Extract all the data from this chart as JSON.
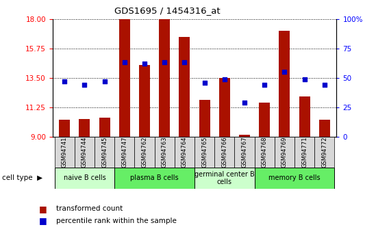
{
  "title": "GDS1695 / 1454316_at",
  "samples": [
    "GSM94741",
    "GSM94744",
    "GSM94745",
    "GSM94747",
    "GSM94762",
    "GSM94763",
    "GSM94764",
    "GSM94765",
    "GSM94766",
    "GSM94767",
    "GSM94768",
    "GSM94769",
    "GSM94771",
    "GSM94772"
  ],
  "bar_values": [
    10.3,
    10.35,
    10.45,
    18.0,
    14.5,
    18.0,
    16.6,
    11.8,
    13.5,
    9.15,
    11.6,
    17.1,
    12.1,
    10.3
  ],
  "dot_values": [
    47,
    44,
    47,
    63,
    62,
    63,
    63,
    46,
    49,
    29,
    44,
    55,
    49,
    44
  ],
  "ymin": 9,
  "ymax": 18,
  "yticks": [
    9,
    11.25,
    13.5,
    15.75,
    18
  ],
  "y2ticks": [
    0,
    25,
    50,
    75,
    100
  ],
  "y2ticklabels": [
    "0",
    "25",
    "50",
    "75",
    "100%"
  ],
  "bar_color": "#AA1100",
  "dot_color": "#0000CC",
  "cell_groups": [
    {
      "label": "naive B cells",
      "start": 0,
      "end": 3,
      "color": "#CCFFCC"
    },
    {
      "label": "plasma B cells",
      "start": 3,
      "end": 7,
      "color": "#66EE66"
    },
    {
      "label": "germinal center B\ncells",
      "start": 7,
      "end": 10,
      "color": "#CCFFCC"
    },
    {
      "label": "memory B cells",
      "start": 10,
      "end": 14,
      "color": "#66EE66"
    }
  ],
  "legend_bar_label": "transformed count",
  "legend_dot_label": "percentile rank within the sample",
  "cell_type_label": "cell type"
}
